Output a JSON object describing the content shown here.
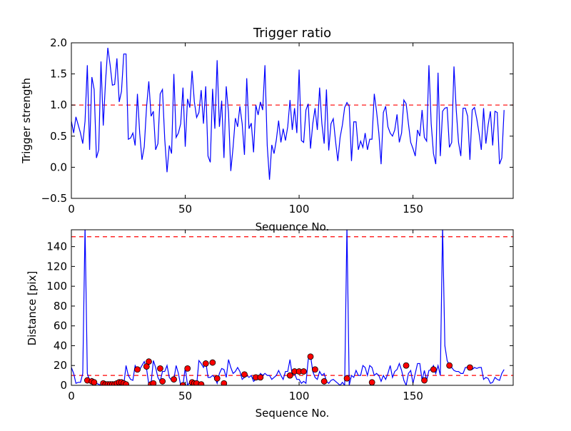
{
  "chart_data": [
    {
      "type": "line",
      "title": "Trigger ratio",
      "xlabel": "Sequence No.",
      "ylabel": "Trigger strength",
      "xlim": [
        0,
        194
      ],
      "ylim": [
        -0.5,
        2.0
      ],
      "xticks": [
        "0",
        "50",
        "100",
        "150"
      ],
      "yticks": [
        "−0.5",
        "0.0",
        "0.5",
        "1.0",
        "1.5",
        "2.0"
      ],
      "xtick_values": [
        0,
        50,
        100,
        150
      ],
      "ytick_values": [
        -0.5,
        0.0,
        0.5,
        1.0,
        1.5,
        2.0
      ],
      "threshold": 1.0,
      "line_color": "#0000ff",
      "threshold_color": "#ff0000",
      "series": [
        {
          "name": "trigger strength",
          "values": [
            0.74,
            0.55,
            0.81,
            0.68,
            0.55,
            0.38,
            0.74,
            1.64,
            0.28,
            1.45,
            1.25,
            0.15,
            0.28,
            1.7,
            0.67,
            1.38,
            1.92,
            1.65,
            1.32,
            1.33,
            1.75,
            1.05,
            1.22,
            1.82,
            1.82,
            0.45,
            0.47,
            0.55,
            0.35,
            1.18,
            0.55,
            0.12,
            0.33,
            0.96,
            1.38,
            0.82,
            0.9,
            0.28,
            0.38,
            1.18,
            1.25,
            0.45,
            -0.08,
            0.35,
            0.22,
            1.5,
            0.48,
            0.55,
            0.7,
            1.28,
            0.33,
            1.1,
            0.96,
            1.55,
            1.05,
            0.8,
            0.88,
            1.24,
            0.7,
            1.3,
            0.18,
            0.08,
            1.26,
            0.62,
            1.72,
            0.65,
            1.07,
            0.15,
            1.3,
            0.88,
            -0.06,
            0.32,
            0.79,
            0.65,
            0.98,
            0.7,
            0.2,
            1.43,
            0.62,
            0.71,
            0.24,
            1.0,
            0.84,
            1.05,
            0.92,
            1.64,
            0.35,
            -0.2,
            0.36,
            0.22,
            0.44,
            0.75,
            0.4,
            0.62,
            0.43,
            0.65,
            1.08,
            0.6,
            0.95,
            0.55,
            1.57,
            0.43,
            0.4,
            0.92,
            1.02,
            0.3,
            0.7,
            0.95,
            0.6,
            1.28,
            0.7,
            0.38,
            1.25,
            0.27,
            0.7,
            0.78,
            0.42,
            0.1,
            0.48,
            0.68,
            0.96,
            1.04,
            0.98,
            0.1,
            0.73,
            0.73,
            0.28,
            0.42,
            0.32,
            0.55,
            0.28,
            0.45,
            0.45,
            1.18,
            0.9,
            0.55,
            0.05,
            0.88,
            0.98,
            0.65,
            0.55,
            0.5,
            0.6,
            0.85,
            0.4,
            0.55,
            1.08,
            1.02,
            0.7,
            0.4,
            0.3,
            0.18,
            0.6,
            0.5,
            0.92,
            0.48,
            0.42,
            1.64,
            0.7,
            0.22,
            0.05,
            1.52,
            0.18,
            0.9,
            0.95,
            0.96,
            0.32,
            0.4,
            1.62,
            0.92,
            0.4,
            0.18,
            0.95,
            0.95,
            0.82,
            0.12,
            0.92,
            0.96,
            0.78,
            0.55,
            0.28,
            0.95,
            0.38,
            0.68,
            0.9,
            0.35,
            0.9,
            0.88,
            0.05,
            0.15,
            0.92
          ]
        }
      ]
    },
    {
      "type": "line",
      "title": "",
      "xlabel": "Sequence No.",
      "ylabel": "Distance [pix]",
      "xlim": [
        0,
        194
      ],
      "ylim": [
        0,
        157
      ],
      "xticks": [
        "0",
        "50",
        "100",
        "150"
      ],
      "yticks": [
        "0",
        "20",
        "40",
        "60",
        "80",
        "100",
        "120",
        "140"
      ],
      "xtick_values": [
        0,
        50,
        100,
        150
      ],
      "ytick_values": [
        0,
        20,
        40,
        60,
        80,
        100,
        120,
        140
      ],
      "thresholds": [
        150,
        10
      ],
      "line_color": "#0000ff",
      "threshold_color": "#ff0000",
      "marker_color": "#ff0000",
      "series": [
        {
          "name": "distance",
          "values": [
            18,
            12,
            2,
            3,
            3,
            12,
            160,
            12,
            5,
            7,
            5,
            2,
            1,
            0,
            0,
            2,
            1,
            0,
            2,
            1,
            2,
            4,
            2,
            0,
            20,
            10,
            6,
            5,
            20,
            16,
            16,
            20,
            24,
            17,
            1,
            2,
            25,
            18,
            8,
            4,
            14,
            14,
            20,
            8,
            5,
            6,
            20,
            12,
            0,
            0,
            18,
            0,
            3,
            2,
            2,
            0,
            25,
            22,
            18,
            24,
            8,
            8,
            10,
            8,
            2,
            12,
            17,
            16,
            8,
            26,
            18,
            12,
            14,
            18,
            14,
            6,
            8,
            10,
            8,
            10,
            4,
            6,
            6,
            12,
            10,
            12,
            10,
            10,
            6,
            8,
            10,
            15,
            10,
            6,
            14,
            14,
            26,
            10,
            12,
            6,
            6,
            2,
            4,
            2,
            26,
            30,
            14,
            8,
            6,
            14,
            10,
            12,
            4,
            2,
            5,
            6,
            4,
            2,
            0,
            3,
            0,
            160,
            0,
            10,
            8,
            15,
            10,
            10,
            20,
            18,
            10,
            20,
            18,
            10,
            12,
            10,
            4,
            10,
            6,
            12,
            20,
            8,
            14,
            16,
            22,
            15,
            5,
            0,
            12,
            15,
            2,
            12,
            22,
            22,
            5,
            15,
            5,
            15,
            16,
            20,
            12,
            20,
            10,
            160,
            40,
            25,
            20,
            18,
            15,
            14,
            14,
            12,
            12,
            18,
            18,
            17,
            16,
            18,
            17,
            18,
            18,
            6,
            8,
            7,
            2,
            3,
            8,
            6,
            5,
            12,
            16
          ]
        }
      ],
      "markers": {
        "x": [
          7,
          9,
          10,
          14,
          15,
          16,
          17,
          18,
          19,
          20,
          21,
          22,
          23,
          24,
          29,
          33,
          34,
          35,
          36,
          39,
          40,
          45,
          49,
          51,
          53,
          54,
          55,
          57,
          59,
          62,
          64,
          67,
          76,
          81,
          83,
          96,
          98,
          100,
          102,
          105,
          107,
          111,
          121,
          132,
          147,
          155,
          159,
          166,
          175
        ],
        "y": [
          5,
          4,
          3,
          2,
          1,
          1,
          1,
          1,
          1,
          2,
          3,
          3,
          2,
          1,
          16,
          19,
          24,
          1,
          2,
          17,
          4,
          6,
          0,
          17,
          3,
          2,
          2,
          1,
          22,
          23,
          7,
          2,
          11,
          8,
          8,
          10,
          14,
          14,
          14,
          29,
          16,
          4,
          7,
          3,
          20,
          5,
          16,
          20,
          18
        ]
      }
    }
  ]
}
